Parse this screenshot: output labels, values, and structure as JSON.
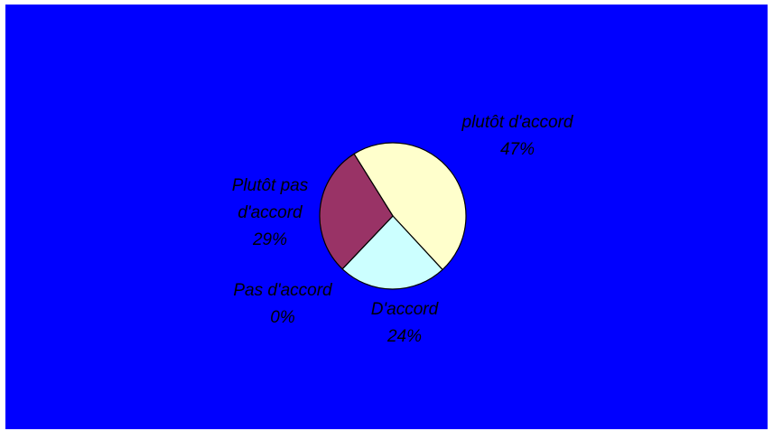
{
  "background_color": "#0000ff",
  "chart_data": {
    "type": "pie",
    "title": "",
    "slices": [
      {
        "label": "plutôt d'accord",
        "percent_label": "47%",
        "value": 47,
        "color": "#ffffcc"
      },
      {
        "label": "D'accord",
        "percent_label": "24%",
        "value": 24,
        "color": "#ccffff"
      },
      {
        "label": "Pas d'accord",
        "percent_label": "0%",
        "value": 0,
        "color": "#9999ff"
      },
      {
        "label_line1": "Plutôt pas",
        "label_line2": "d'accord",
        "percent_label": "29%",
        "value": 29,
        "color": "#993366"
      }
    ],
    "legend": false
  }
}
